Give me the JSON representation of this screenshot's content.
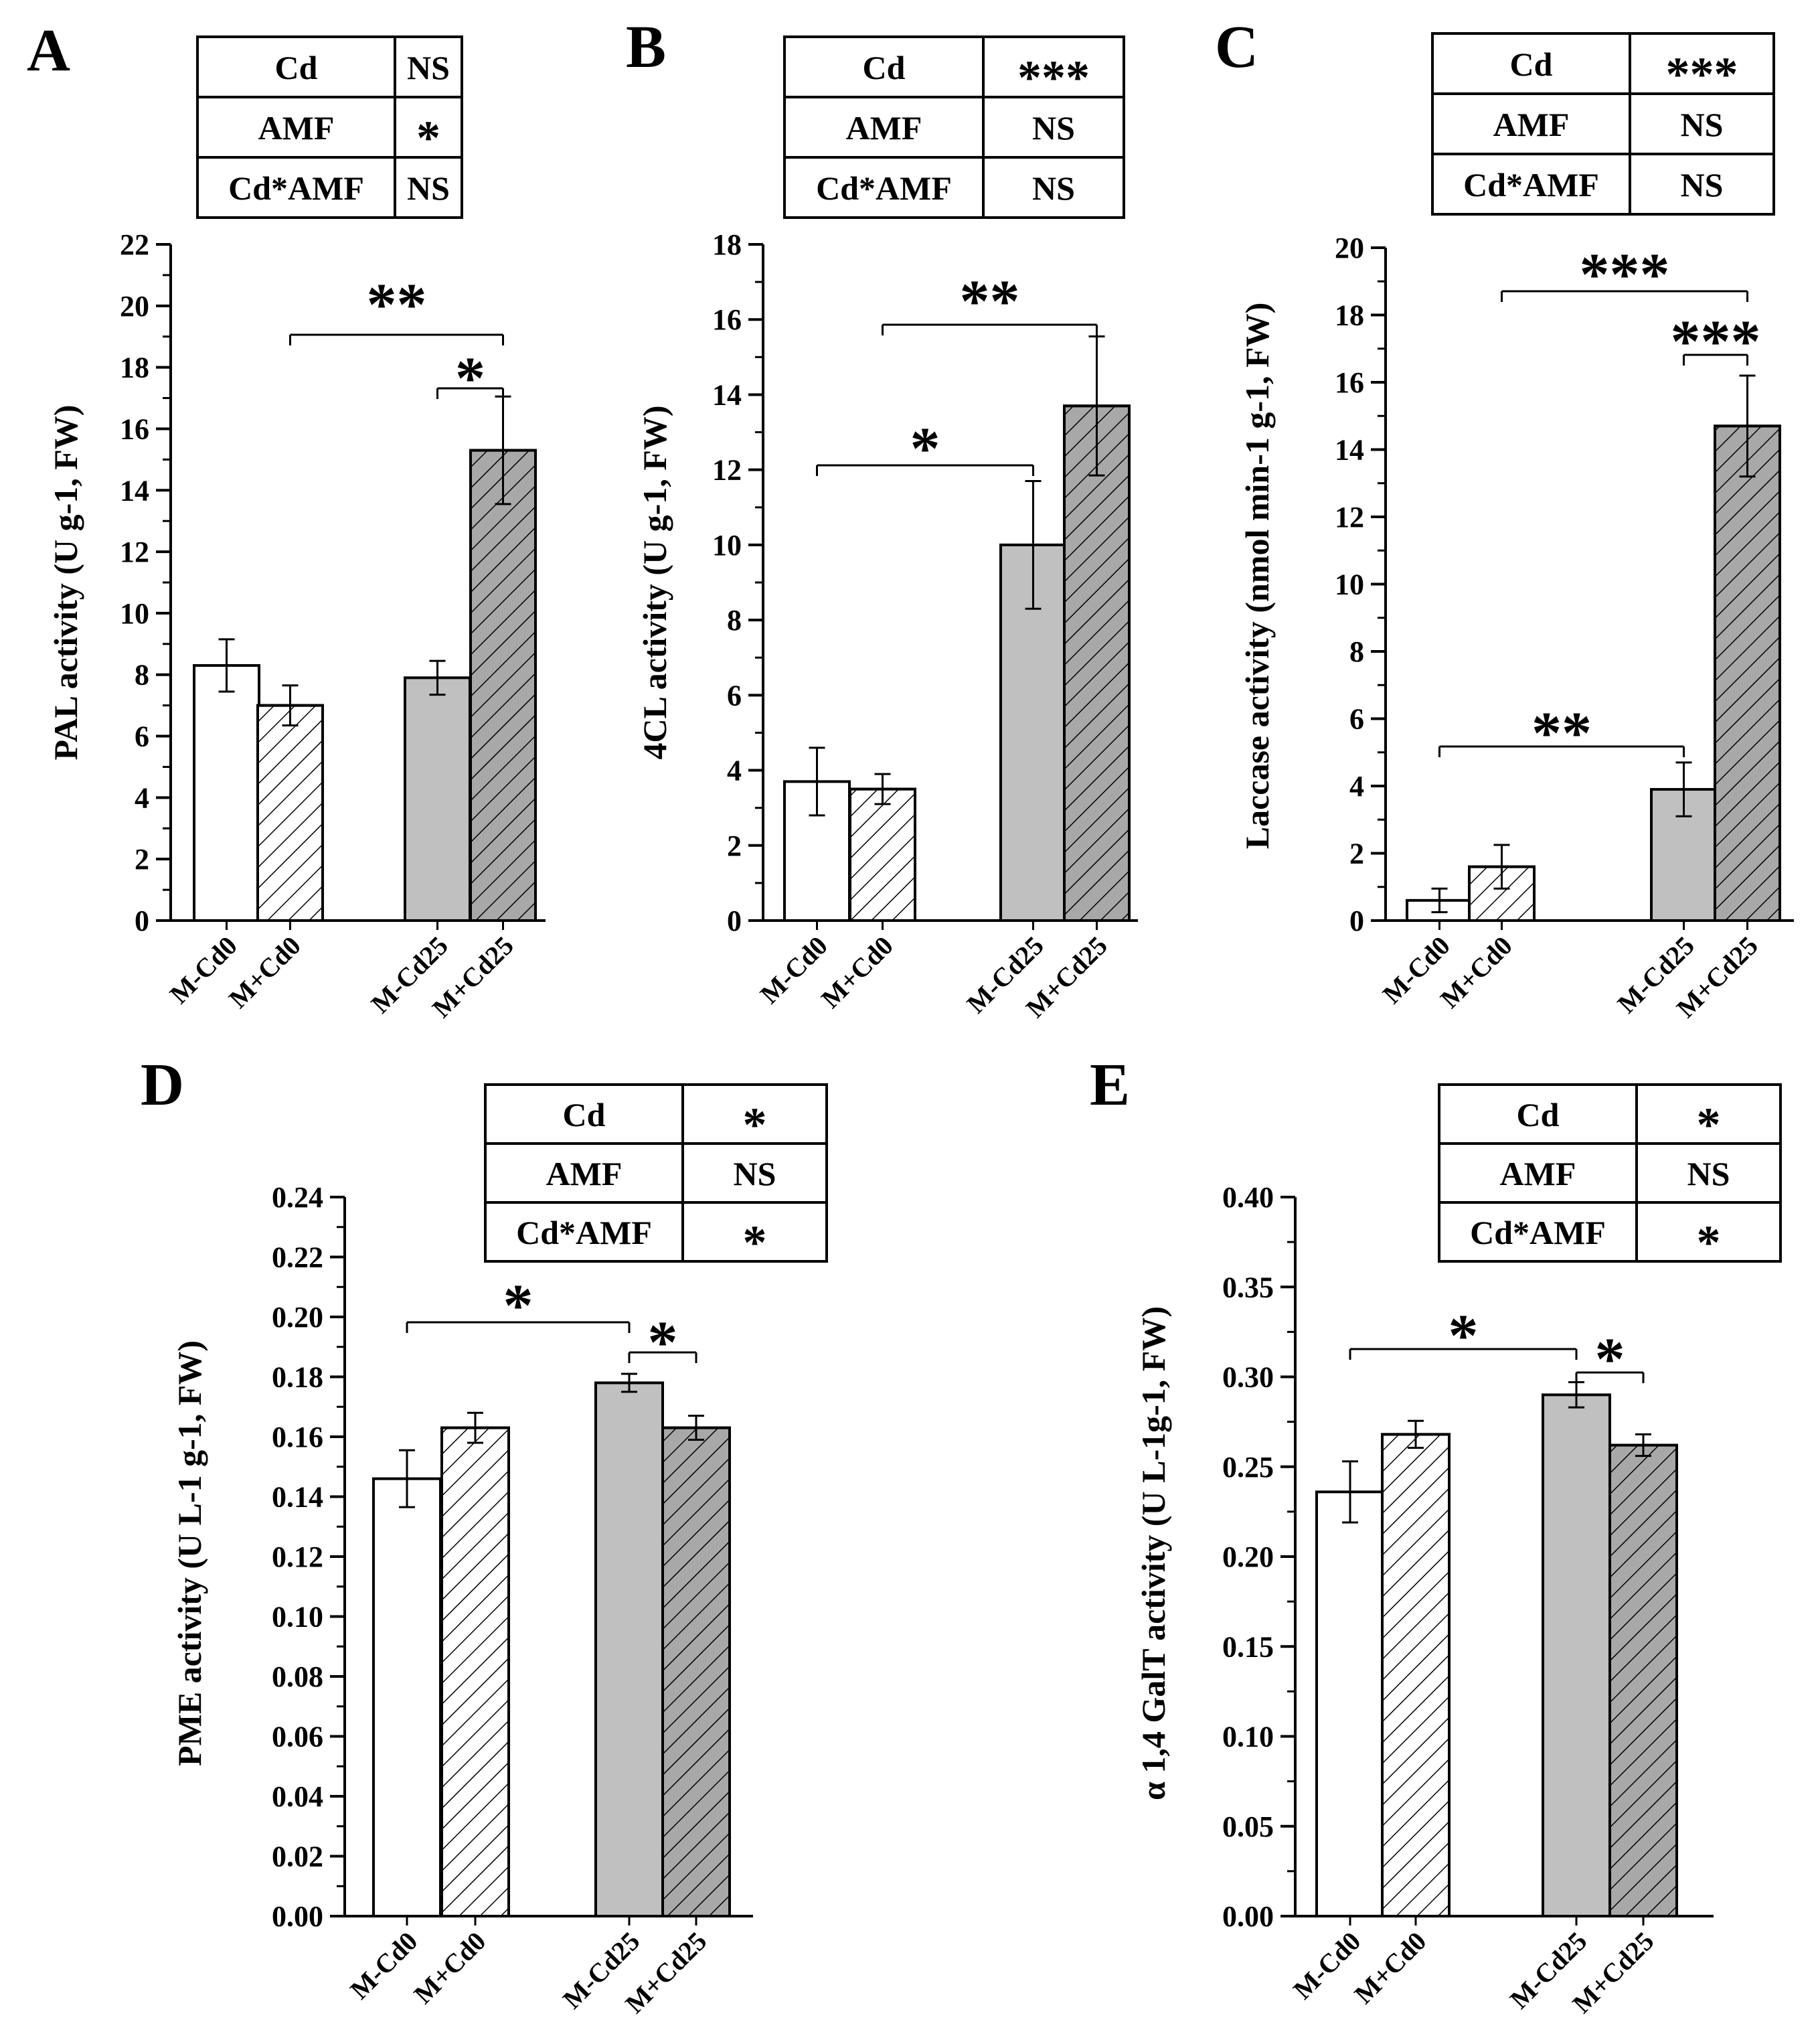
{
  "categories": [
    "M-Cd0",
    "M+Cd0",
    "M-Cd25",
    "M+Cd25"
  ],
  "colors": {
    "axis": "#000000",
    "bar_m_cd0": "#ffffff",
    "bar_cd25": "#c0c0c0",
    "bar_hatched_cd25": "#a8a8a8",
    "hatch_stroke": "#000000"
  },
  "chart_data": [
    {
      "id": "A",
      "type": "bar",
      "ylabel": "PAL activity (U g-1, FW)",
      "ylim": [
        0,
        22
      ],
      "yticks": [
        0,
        2,
        4,
        6,
        8,
        10,
        12,
        14,
        16,
        18,
        20,
        22
      ],
      "values": [
        8.3,
        7.0,
        7.9,
        15.3
      ],
      "errors": [
        0.85,
        0.65,
        0.55,
        1.75
      ],
      "anova": [
        [
          "Cd",
          "NS"
        ],
        [
          "AMF",
          "*"
        ],
        [
          "Cd*AMF",
          "NS"
        ]
      ],
      "significance": [
        {
          "from": "M+Cd0",
          "to": "M+Cd25",
          "label": "**"
        },
        {
          "from": "M-Cd25",
          "to": "M+Cd25",
          "label": "*"
        }
      ]
    },
    {
      "id": "B",
      "type": "bar",
      "ylabel": "4CL activity (U g-1, FW)",
      "ylim": [
        0,
        18
      ],
      "yticks": [
        0,
        2,
        4,
        6,
        8,
        10,
        12,
        14,
        16,
        18
      ],
      "values": [
        3.7,
        3.5,
        10.0,
        13.7
      ],
      "errors": [
        0.9,
        0.4,
        1.7,
        1.85
      ],
      "anova": [
        [
          "Cd",
          "***"
        ],
        [
          "AMF",
          "NS"
        ],
        [
          "Cd*AMF",
          "NS"
        ]
      ],
      "significance": [
        {
          "from": "M-Cd0",
          "to": "M-Cd25",
          "label": "*"
        },
        {
          "from": "M+Cd0",
          "to": "M+Cd25",
          "label": "**"
        }
      ]
    },
    {
      "id": "C",
      "type": "bar",
      "ylabel": "Laccase activity (nmol min-1 g-1, FW)",
      "ylim": [
        0,
        20
      ],
      "yticks": [
        0,
        2,
        4,
        6,
        8,
        10,
        12,
        14,
        16,
        18,
        20
      ],
      "values": [
        0.6,
        1.6,
        3.9,
        14.7
      ],
      "errors": [
        0.35,
        0.65,
        0.8,
        1.5
      ],
      "anova": [
        [
          "Cd",
          "***"
        ],
        [
          "AMF",
          "NS"
        ],
        [
          "Cd*AMF",
          "NS"
        ]
      ],
      "significance": [
        {
          "from": "M-Cd0",
          "to": "M-Cd25",
          "label": "**"
        },
        {
          "from": "M+Cd0",
          "to": "M+Cd25",
          "label": "***"
        },
        {
          "from": "M-Cd25",
          "to": "M+Cd25",
          "label": "***"
        }
      ]
    },
    {
      "id": "D",
      "type": "bar",
      "ylabel": "PME activity (U L-1 g-1, FW)",
      "ylim": [
        0,
        0.24
      ],
      "yticks": [
        "0.00",
        "0.02",
        "0.04",
        "0.06",
        "0.08",
        "0.10",
        "0.12",
        "0.14",
        "0.16",
        "0.18",
        "0.20",
        "0.22",
        "0.24"
      ],
      "values": [
        0.146,
        0.163,
        0.178,
        0.163
      ],
      "errors": [
        0.0095,
        0.005,
        0.003,
        0.004
      ],
      "anova": [
        [
          "Cd",
          "*"
        ],
        [
          "AMF",
          "NS"
        ],
        [
          "Cd*AMF",
          "*"
        ]
      ],
      "significance": [
        {
          "from": "M-Cd0",
          "to": "M-Cd25",
          "label": "*"
        },
        {
          "from": "M-Cd25",
          "to": "M+Cd25",
          "label": "*"
        }
      ]
    },
    {
      "id": "E",
      "type": "bar",
      "ylabel": "α 1,4 GalT activity (U L-1g-1, FW)",
      "ylim": [
        0,
        0.4
      ],
      "yticks": [
        "0.00",
        "0.05",
        "0.10",
        "0.15",
        "0.20",
        "0.25",
        "0.30",
        "0.35",
        "0.40"
      ],
      "values": [
        0.236,
        0.268,
        0.29,
        0.262
      ],
      "errors": [
        0.017,
        0.0075,
        0.007,
        0.006
      ],
      "anova": [
        [
          "Cd",
          "*"
        ],
        [
          "AMF",
          "NS"
        ],
        [
          "Cd*AMF",
          "*"
        ]
      ],
      "significance": [
        {
          "from": "M-Cd0",
          "to": "M-Cd25",
          "label": "*"
        },
        {
          "from": "M-Cd25",
          "to": "M+Cd25",
          "label": "*"
        }
      ]
    }
  ]
}
